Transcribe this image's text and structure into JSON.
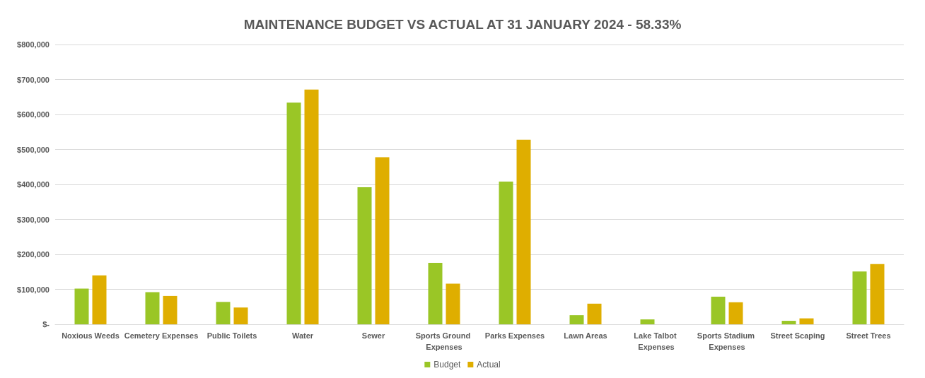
{
  "chart_data": {
    "type": "bar",
    "title": "MAINTENANCE BUDGET VS ACTUAL AT 31 JANUARY 2024 - 58.33%",
    "categories": [
      "Noxious Weeds",
      "Cemetery Expenses",
      "Public Toilets",
      "Water",
      "Sewer",
      "Sports Ground Expenses",
      "Parks Expenses",
      "Lawn Areas",
      "Lake Talbot Expenses",
      "Sports Stadium Expenses",
      "Street Scaping",
      "Street Trees"
    ],
    "series": [
      {
        "name": "Budget",
        "color": "#9ac626",
        "values": [
          102000,
          92000,
          64000,
          634000,
          392000,
          176000,
          408000,
          26000,
          14000,
          79000,
          10000,
          151000
        ]
      },
      {
        "name": "Actual",
        "color": "#dfae00",
        "values": [
          140000,
          81000,
          48000,
          671000,
          478000,
          116000,
          528000,
          59000,
          0,
          63000,
          17000,
          172000
        ]
      }
    ],
    "ylim": [
      0,
      800000
    ],
    "yticks": [
      {
        "value": 0,
        "label": "$-"
      },
      {
        "value": 100000,
        "label": "$100,000"
      },
      {
        "value": 200000,
        "label": "$200,000"
      },
      {
        "value": 300000,
        "label": "$300,000"
      },
      {
        "value": 400000,
        "label": "$400,000"
      },
      {
        "value": 500000,
        "label": "$500,000"
      },
      {
        "value": 600000,
        "label": "$600,000"
      },
      {
        "value": 700000,
        "label": "$700,000"
      },
      {
        "value": 800000,
        "label": "$800,000"
      }
    ],
    "grid": "y",
    "legend": "bottom"
  }
}
